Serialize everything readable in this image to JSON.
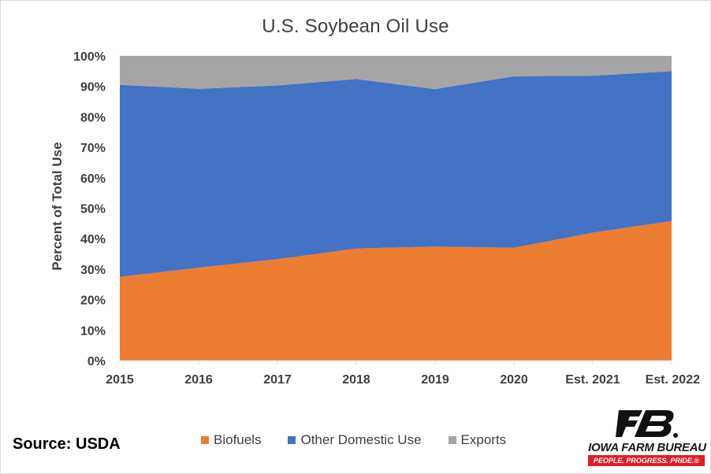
{
  "chart_data": {
    "type": "area",
    "stacked": true,
    "percent": true,
    "title": "U.S. Soybean Oil Use",
    "ylabel": "Percent of Total Use",
    "xlabel": "",
    "categories": [
      "2015",
      "2016",
      "2017",
      "2018",
      "2019",
      "2020",
      "Est. 2021",
      "Est. 2022"
    ],
    "y_ticks": [
      "0%",
      "10%",
      "20%",
      "30%",
      "40%",
      "50%",
      "60%",
      "70%",
      "80%",
      "90%",
      "100%"
    ],
    "ylim": [
      0,
      100
    ],
    "grid": false,
    "legend_position": "bottom",
    "series": [
      {
        "name": "Biofuels",
        "color": "#ed7d31",
        "values": [
          27.5,
          30.5,
          33.3,
          36.8,
          37.4,
          37.0,
          42.0,
          45.8
        ]
      },
      {
        "name": "Other Domestic Use",
        "color": "#4472c4",
        "values": [
          63.0,
          58.7,
          57.0,
          55.6,
          51.7,
          56.3,
          51.5,
          49.2
        ]
      },
      {
        "name": "Exports",
        "color": "#a5a5a5",
        "values": [
          9.5,
          10.8,
          9.7,
          7.6,
          10.9,
          6.7,
          6.5,
          5.0
        ]
      }
    ]
  },
  "footer": {
    "source": "Source: USDA"
  },
  "logo": {
    "name": "IOWA FARM BUREAU",
    "tagline": "PEOPLE. PROGRESS. PRIDE.®"
  }
}
